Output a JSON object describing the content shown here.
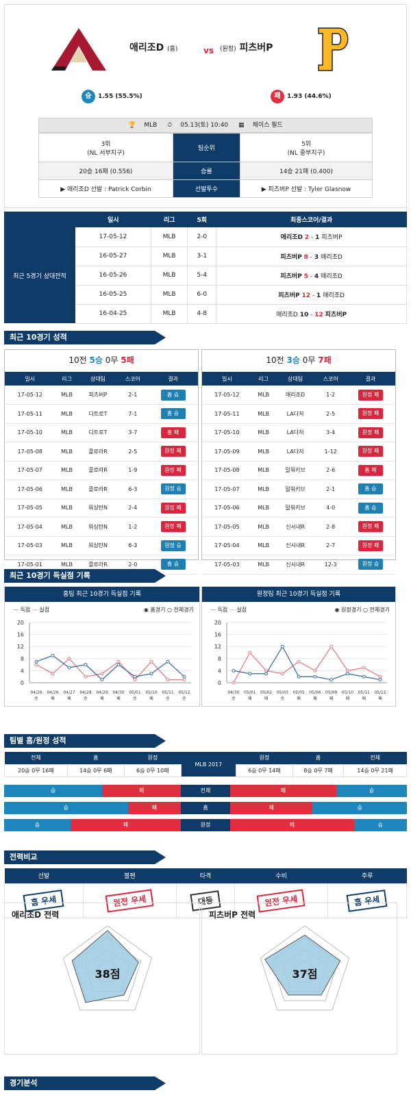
{
  "header": {
    "home_name": "애리조D",
    "home_tag": "(홈)",
    "vs": "vs",
    "away_tag": "(원정)",
    "away_name": "피츠버P",
    "home_odds_icon": "승",
    "home_odds": "1.55 (55.5%)",
    "away_odds_icon": "패",
    "away_odds": "1.93 (44.6%)",
    "league": "MLB",
    "datetime": "05.13(토) 10:40",
    "venue": "체이스 필드",
    "rank_label": "팀순위",
    "home_rank": "3위",
    "home_div": "(NL 서부지구)",
    "away_rank": "5위",
    "away_div": "(NL 중부지구)",
    "record_label": "승률",
    "home_record": "20승 16패 (0.556)",
    "away_record": "14승 21패 (0.400)",
    "pitcher_label": "선발투수",
    "home_pitcher": "▶ 애리조D 선발 : Patrick Corbin",
    "away_pitcher": "▶ 피츠버P 선발 : Tyler Glasnow"
  },
  "h2h": {
    "label": "최근 5경기 상대전적",
    "cols": [
      "일시",
      "리그",
      "5회",
      "최종스코어/결과"
    ],
    "rows": [
      {
        "date": "17-05-12",
        "league": "MLB",
        "i5": "2-0",
        "t1": "애리조D",
        "s1": "2",
        "s2": "1",
        "t2": "피츠버P",
        "win": 1
      },
      {
        "date": "16-05-27",
        "league": "MLB",
        "i5": "3-1",
        "t1": "피츠버P",
        "s1": "8",
        "s2": "3",
        "t2": "애리조D",
        "win": 1
      },
      {
        "date": "16-05-26",
        "league": "MLB",
        "i5": "5-4",
        "t1": "피츠버P",
        "s1": "5",
        "s2": "4",
        "t2": "애리조D",
        "win": 1
      },
      {
        "date": "16-05-25",
        "league": "MLB",
        "i5": "6-0",
        "t1": "피츠버P",
        "s1": "12",
        "s2": "1",
        "t2": "애리조D",
        "win": 1
      },
      {
        "date": "16-04-25",
        "league": "MLB",
        "i5": "4-8",
        "t1": "애리조D",
        "s1": "10",
        "s2": "12",
        "t2": "피츠버P",
        "win": 2
      }
    ]
  },
  "sections": {
    "recent10": "최근 10경기 성적",
    "scoring": "최근 10경기 득실점 기록",
    "homeaway": "팀별 홈/원정 성적",
    "compare": "전력비교",
    "analysis": "경기분석"
  },
  "recent": {
    "cols": [
      "일시",
      "리그",
      "상대팀",
      "스코어",
      "결과"
    ],
    "home": {
      "prefix": "10전",
      "w": "5승",
      "d": "0무",
      "l": "5패",
      "rows": [
        [
          "17-05-12",
          "MLB",
          "피츠버P",
          "2-1",
          "홈 승",
          "b"
        ],
        [
          "17-05-11",
          "MLB",
          "디트로T",
          "7-1",
          "홈 승",
          "b"
        ],
        [
          "17-05-10",
          "MLB",
          "디트로T",
          "3-7",
          "홈 패",
          "r"
        ],
        [
          "17-05-08",
          "MLB",
          "콜로라R",
          "2-5",
          "원정 패",
          "r"
        ],
        [
          "17-05-07",
          "MLB",
          "콜로라R",
          "1-9",
          "원정 패",
          "r"
        ],
        [
          "17-05-06",
          "MLB",
          "콜로라R",
          "6-3",
          "원정 승",
          "b"
        ],
        [
          "17-05-05",
          "MLB",
          "워싱턴N",
          "2-4",
          "원정 패",
          "r"
        ],
        [
          "17-05-04",
          "MLB",
          "워싱턴N",
          "1-2",
          "원정 패",
          "r"
        ],
        [
          "17-05-03",
          "MLB",
          "워싱턴N",
          "6-3",
          "원정 승",
          "b"
        ],
        [
          "17-05-01",
          "MLB",
          "콜로라R",
          "2-0",
          "홈 승",
          "b"
        ]
      ]
    },
    "away": {
      "prefix": "10전",
      "w": "3승",
      "d": "0무",
      "l": "7패",
      "rows": [
        [
          "17-05-12",
          "MLB",
          "애리조D",
          "1-2",
          "원정 패",
          "r"
        ],
        [
          "17-05-11",
          "MLB",
          "LA다저",
          "2-5",
          "원정 패",
          "r"
        ],
        [
          "17-05-10",
          "MLB",
          "LA다저",
          "3-4",
          "원정 패",
          "r"
        ],
        [
          "17-05-09",
          "MLB",
          "LA다저",
          "1-12",
          "원정 패",
          "r"
        ],
        [
          "17-05-08",
          "MLB",
          "밀워키브",
          "2-6",
          "홈 패",
          "r"
        ],
        [
          "17-05-07",
          "MLB",
          "밀워키브",
          "2-1",
          "홈 승",
          "b"
        ],
        [
          "17-05-06",
          "MLB",
          "밀워키브",
          "4-0",
          "홈 승",
          "b"
        ],
        [
          "17-05-05",
          "MLB",
          "신시내R",
          "2-8",
          "원정 패",
          "r"
        ],
        [
          "17-05-04",
          "MLB",
          "신시내R",
          "2-7",
          "원정 패",
          "r"
        ],
        [
          "17-05-03",
          "MLB",
          "신시내R",
          "12-3",
          "원정 승",
          "b"
        ]
      ]
    }
  },
  "charts": {
    "legend_score": "득점",
    "legend_lost": "실점",
    "home_title": "홈팀 최근 10경기 득실점 기록",
    "away_title": "원정팀 최근 10경기 득실점 기록",
    "opt_home": "홈경기",
    "opt_away": "원정경기",
    "opt_all": "전체경기"
  },
  "chart_data": [
    {
      "type": "line",
      "title": "홈팀 최근 10경기 득실점 기록",
      "ylim": [
        0,
        20
      ],
      "yticks": [
        0,
        4,
        8,
        12,
        16,
        20
      ],
      "categories": [
        "04/26",
        "04/26",
        "04/27",
        "04/28",
        "04/29",
        "04/30",
        "05/01",
        "05/10",
        "05/11",
        "05/12"
      ],
      "cat_tags": [
        "승",
        "패",
        "패",
        "승",
        "패",
        "패",
        "승",
        "패",
        "승",
        "승"
      ],
      "series": [
        {
          "name": "득점",
          "color": "#3c6e9e",
          "values": [
            7,
            9,
            5,
            6,
            1,
            6,
            2,
            3,
            7,
            2
          ]
        },
        {
          "name": "실점",
          "color": "#e27b85",
          "values": [
            6,
            3,
            8,
            2,
            3,
            7,
            1,
            7,
            1,
            1
          ]
        }
      ]
    },
    {
      "type": "line",
      "title": "원정팀 최근 10경기 득실점 기록",
      "ylim": [
        0,
        20
      ],
      "yticks": [
        0,
        4,
        8,
        12,
        16,
        20
      ],
      "categories": [
        "04/30",
        "05/01",
        "05/02",
        "05/03",
        "05/05",
        "05/06",
        "05/09",
        "05/10",
        "05/11",
        "05/12"
      ],
      "cat_tags": [
        "승",
        "패",
        "패",
        "승",
        "패",
        "패",
        "패",
        "패",
        "패",
        "패"
      ],
      "series": [
        {
          "name": "득점",
          "color": "#3c6e9e",
          "values": [
            4,
            3,
            3,
            12,
            2,
            2,
            1,
            3,
            2,
            1
          ]
        },
        {
          "name": "실점",
          "color": "#e27b85",
          "values": [
            0,
            10,
            4,
            3,
            7,
            4,
            12,
            4,
            5,
            2
          ]
        }
      ]
    }
  ],
  "homeaway": {
    "cols": [
      "전체",
      "홈",
      "원정",
      "MLB 2017",
      "원정",
      "홈",
      "전체"
    ],
    "vals": [
      "20승 0무 16패",
      "14승 0무 6패",
      "6승 0무 10패",
      "",
      "6승 0무 14패",
      "8승 0무 7패",
      "14승 0무 21패"
    ],
    "rows": [
      {
        "label": "전체",
        "w": "승",
        "l": "패",
        "hw": 0.556,
        "aw": 0.4
      },
      {
        "label": "홈",
        "w": "승",
        "l": "패",
        "hw": 0.7,
        "aw": 0.533
      },
      {
        "label": "원정",
        "w": "승",
        "l": "패",
        "hw": 0.375,
        "aw": 0.3
      }
    ]
  },
  "compare": {
    "cols": [
      "선발",
      "불펜",
      "타격",
      "수비",
      "주루"
    ],
    "stamps": [
      "홈 우세",
      "원정 우세",
      "대등",
      "원정 우세",
      "홈 우세"
    ]
  },
  "power": {
    "home_title": "애리조D 전력",
    "away_title": "피츠버P 전력",
    "home": {
      "선발": 9,
      "불펜": 7,
      "타격": 6,
      "주루": 8,
      "수비": 8,
      "total": "38점"
    },
    "away": {
      "선발": 8,
      "불펜": 8,
      "타격": 6,
      "주루": 6,
      "수비": 9,
      "total": "37점"
    }
  }
}
